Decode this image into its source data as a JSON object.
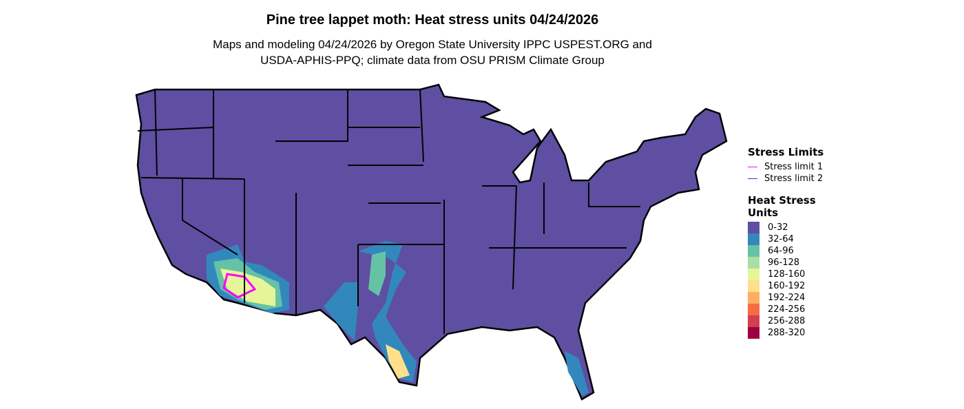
{
  "title": "Pine tree lappet moth: Heat stress units 04/24/2026",
  "subtitle_lines": [
    "Maps and modeling 04/24/2026 by Oregon State University IPPC USPEST.ORG and",
    "USDA-APHIS-PPQ; climate data from OSU PRISM Climate Group"
  ],
  "legend": {
    "stress_title": "Stress Limits",
    "stress_items": [
      {
        "label": "Stress limit 1",
        "color": "#FF00FF"
      },
      {
        "label": "Stress limit 2",
        "color": "#3333CC"
      }
    ],
    "heat_title": "Heat Stress Units",
    "heat_items": [
      {
        "label": "0-32",
        "color": "#5E4FA2"
      },
      {
        "label": "32-64",
        "color": "#3288BD"
      },
      {
        "label": "64-96",
        "color": "#66C2A5"
      },
      {
        "label": "96-128",
        "color": "#ABDDA4"
      },
      {
        "label": "128-160",
        "color": "#E6F598"
      },
      {
        "label": "160-192",
        "color": "#FEE08B"
      },
      {
        "label": "192-224",
        "color": "#FDAE61"
      },
      {
        "label": "224-256",
        "color": "#F46D43"
      },
      {
        "label": "256-288",
        "color": "#D53E4F"
      },
      {
        "label": "288-320",
        "color": "#9E0142"
      }
    ]
  }
}
